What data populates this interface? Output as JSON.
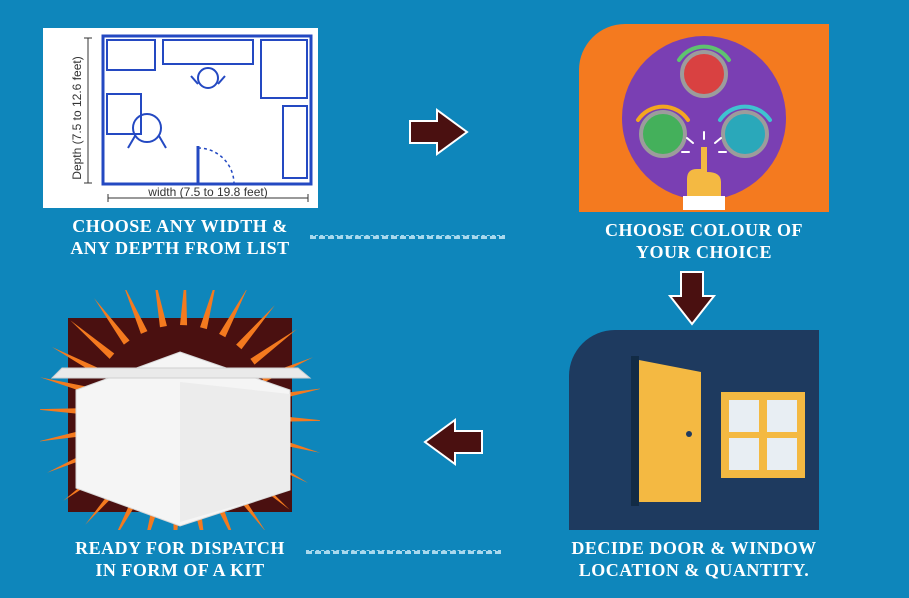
{
  "background_color": "#0e86bb",
  "steps": {
    "step1": {
      "caption_line1": "CHOOSE ANY WIDTH &",
      "caption_line2": "ANY DEPTH FROM LIST",
      "width_label": "width (7.5 to 19.8 feet)",
      "depth_label": "Depth (7.5 to 12.6 feet)",
      "panel_bg": "#ffffff",
      "plan_stroke": "#2449c2",
      "label_color": "#333333",
      "label_fontsize": 12
    },
    "step2": {
      "caption_line1": "CHOOSE COLOUR OF",
      "caption_line2": "YOUR CHOICE",
      "panel_bg": "#f47a1f",
      "circle_bg": "#7a3fb3",
      "swatch_red": "#d94141",
      "swatch_green": "#44b05b",
      "swatch_teal": "#2aa8ba",
      "swatch_ring": "#9c9c9c",
      "arc_green": "#5ec36f",
      "arc_orange": "#f4a61f",
      "arc_teal": "#3fc3d0",
      "hand_fill": "#f4b942",
      "hand_cuff": "#ffffff"
    },
    "step3": {
      "caption_line1": "DECIDE DOOR & WINDOW",
      "caption_line2": "LOCATION & QUANTITY.",
      "panel_bg": "#1e3a5f",
      "door_fill": "#f4b942",
      "window_frame": "#f4b942",
      "window_pane": "#e8eef3"
    },
    "step4": {
      "caption_line1": "READY FOR DISPATCH",
      "caption_line2": "IN FORM OF A KIT",
      "burst_bg": "#4a1010",
      "ray_color": "#f47a1f",
      "house_fill": "#f5f5f5",
      "house_stroke": "#d8d8d8"
    }
  },
  "arrows": {
    "fill": "#4a1010",
    "stroke": "#ffffff",
    "stroke_width": 2
  },
  "connector_color": "#a8d8ed"
}
